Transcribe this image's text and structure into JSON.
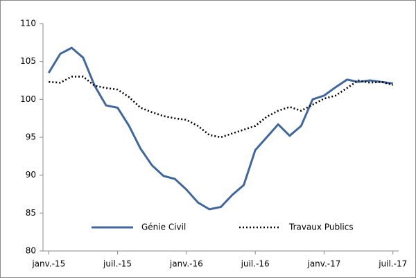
{
  "chart_data": {
    "type": "line",
    "categories": [
      "janv.-15",
      null,
      null,
      null,
      null,
      null,
      "juil.-15",
      null,
      null,
      null,
      null,
      null,
      "janv.-16",
      null,
      null,
      null,
      null,
      null,
      "juil.-16",
      null,
      null,
      null,
      null,
      null,
      "janv.-17",
      null,
      null,
      null,
      null,
      null,
      "juil.-17"
    ],
    "series": [
      {
        "name": "Génie Civil",
        "color": "#41669b",
        "dash": "solid",
        "values": [
          103.5,
          106,
          106.8,
          105.5,
          101.8,
          99.2,
          98.9,
          96.5,
          93.5,
          91.3,
          89.9,
          89.5,
          88.1,
          86.4,
          85.5,
          85.8,
          87.4,
          88.7,
          93.3,
          95,
          96.7,
          95.2,
          96.5,
          100,
          100.5,
          101.6,
          102.6,
          102.3,
          102.5,
          102.3,
          102.1
        ]
      },
      {
        "name": "Travaux Publics",
        "color": "#000000",
        "dash": "dotted",
        "values": [
          102.3,
          102.2,
          103,
          103,
          101.8,
          101.5,
          101.3,
          100.3,
          98.9,
          98.3,
          97.8,
          97.5,
          97.3,
          96.5,
          95.3,
          95,
          95.5,
          96,
          96.5,
          97.7,
          98.5,
          99,
          98.5,
          99.3,
          100.1,
          100.5,
          101.5,
          102.5,
          102.2,
          102.3,
          101.9
        ]
      }
    ],
    "ylim": [
      80,
      110
    ],
    "yticks": [
      80,
      85,
      90,
      95,
      100,
      105,
      110
    ],
    "grid": false,
    "legend": "bottom"
  }
}
